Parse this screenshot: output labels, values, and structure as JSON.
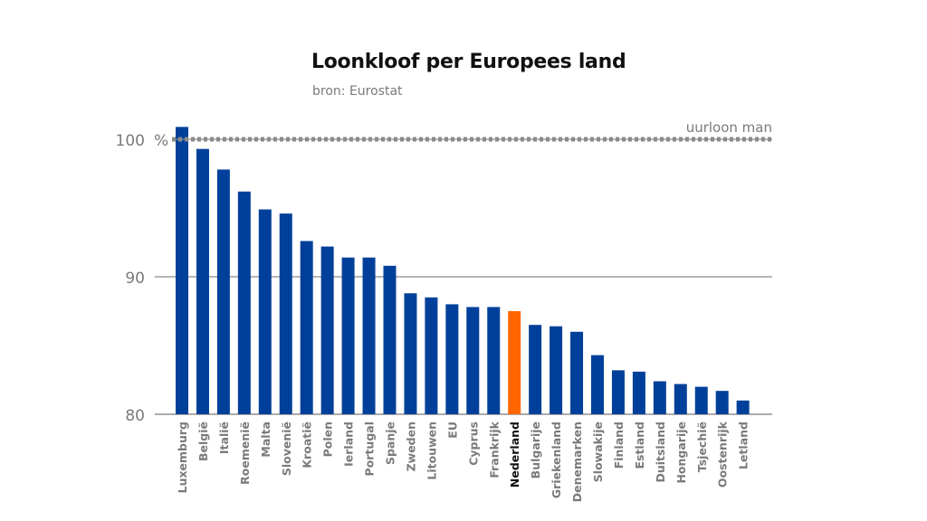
{
  "chart_data": {
    "type": "bar",
    "title": "Loonkloof per Europees land",
    "subtitle": "bron: Eurostat",
    "xlabel": "",
    "ylabel": "",
    "ylim": [
      80,
      101
    ],
    "y_ticks": [
      {
        "value": 80,
        "label": "80"
      },
      {
        "value": 90,
        "label": "90"
      },
      {
        "value": 100,
        "label": "100"
      }
    ],
    "y_unit": "%",
    "reference_line": {
      "value": 100,
      "label": "uurloon man",
      "style": "dotted"
    },
    "grid": true,
    "categories": [
      "Luxemburg",
      "België",
      "Italië",
      "Roemenië",
      "Malta",
      "Slovenië",
      "Kroatië",
      "Polen",
      "Ierland",
      "Portugal",
      "Spanje",
      "Zweden",
      "Litouwen",
      "EU",
      "Cyprus",
      "Frankrijk",
      "Nederland",
      "Bulgarije",
      "Griekenland",
      "Denemarken",
      "Slowakije",
      "Finland",
      "Estland",
      "Duitsland",
      "Hongarije",
      "Tsjechië",
      "Oostenrijk",
      "Letland"
    ],
    "values": [
      100.9,
      99.3,
      97.8,
      96.2,
      94.9,
      94.6,
      92.6,
      92.2,
      91.4,
      91.4,
      90.8,
      88.8,
      88.5,
      88.0,
      87.8,
      87.8,
      87.5,
      86.5,
      86.4,
      86.0,
      84.3,
      83.2,
      83.1,
      82.4,
      82.2,
      82.0,
      81.7,
      81.0
    ],
    "highlight": "Nederland",
    "colors": {
      "bar": "#00409a",
      "highlight": "#ff6600",
      "reference_line": "#8a8a8a",
      "grid": "#8a8a8a",
      "tick_label": "#7a7a7a",
      "category_label": "#7a7a7a",
      "highlight_label": "#111111"
    }
  }
}
